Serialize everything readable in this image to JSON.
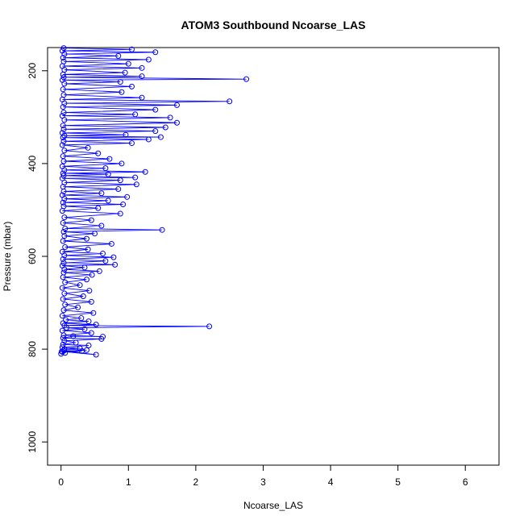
{
  "chart_data": {
    "type": "line",
    "title": "ATOM3 Southbound Ncoarse_LAS",
    "xlabel": "Ncoarse_LAS",
    "ylabel": "Pressure (mbar)",
    "xlim": [
      -0.2,
      6.5
    ],
    "ylim": [
      1050,
      150
    ],
    "y_reversed": true,
    "xticks": [
      0,
      1,
      2,
      3,
      4,
      5,
      6
    ],
    "yticks": [
      200,
      400,
      600,
      800,
      1000
    ],
    "grid": false,
    "legend": "none",
    "series_color": "#0000ff",
    "marker": "open-circle",
    "series": [
      {
        "points": [
          [
            0.0,
            810
          ],
          [
            0.06,
            808
          ],
          [
            0.02,
            806
          ],
          [
            0.31,
            804
          ],
          [
            0.04,
            803
          ],
          [
            0.52,
            812
          ],
          [
            0.01,
            805
          ],
          [
            0.38,
            802
          ],
          [
            0.05,
            800
          ],
          [
            0.28,
            798
          ],
          [
            0.02,
            796
          ],
          [
            0.41,
            792
          ],
          [
            0.03,
            790
          ],
          [
            0.22,
            786
          ],
          [
            0.05,
            782
          ],
          [
            0.6,
            778
          ],
          [
            0.03,
            776
          ],
          [
            0.18,
            772
          ],
          [
            0.62,
            773
          ],
          [
            0.04,
            770
          ],
          [
            0.45,
            765
          ],
          [
            0.02,
            760
          ],
          [
            0.35,
            757
          ],
          [
            0.08,
            754
          ],
          [
            2.2,
            751
          ],
          [
            0.05,
            749
          ],
          [
            0.52,
            747
          ],
          [
            0.03,
            744
          ],
          [
            0.41,
            740
          ],
          [
            0.07,
            737
          ],
          [
            0.3,
            733
          ],
          [
            0.02,
            728
          ],
          [
            0.48,
            722
          ],
          [
            0.04,
            716
          ],
          [
            0.25,
            710
          ],
          [
            0.06,
            704
          ],
          [
            0.45,
            698
          ],
          [
            0.03,
            692
          ],
          [
            0.33,
            686
          ],
          [
            0.05,
            680
          ],
          [
            0.42,
            674
          ],
          [
            0.02,
            668
          ],
          [
            0.28,
            662
          ],
          [
            0.06,
            656
          ],
          [
            0.38,
            650
          ],
          [
            0.03,
            645
          ],
          [
            0.46,
            640
          ],
          [
            0.04,
            635
          ],
          [
            0.57,
            632
          ],
          [
            0.05,
            628
          ],
          [
            0.35,
            624
          ],
          [
            0.02,
            620
          ],
          [
            0.8,
            618
          ],
          [
            0.04,
            614
          ],
          [
            0.66,
            610
          ],
          [
            0.03,
            606
          ],
          [
            0.78,
            602
          ],
          [
            0.05,
            598
          ],
          [
            0.62,
            594
          ],
          [
            0.02,
            590
          ],
          [
            0.4,
            585
          ],
          [
            0.06,
            580
          ],
          [
            0.75,
            573
          ],
          [
            0.03,
            567
          ],
          [
            0.38,
            562
          ],
          [
            0.05,
            556
          ],
          [
            0.5,
            551
          ],
          [
            0.04,
            547
          ],
          [
            1.5,
            543
          ],
          [
            0.06,
            540
          ],
          [
            0.6,
            534
          ],
          [
            0.03,
            528
          ],
          [
            0.45,
            522
          ],
          [
            0.05,
            516
          ],
          [
            0.88,
            508
          ],
          [
            0.02,
            502
          ],
          [
            0.55,
            496
          ],
          [
            0.04,
            492
          ],
          [
            0.92,
            488
          ],
          [
            0.03,
            484
          ],
          [
            0.7,
            480
          ],
          [
            0.05,
            476
          ],
          [
            0.98,
            472
          ],
          [
            0.02,
            468
          ],
          [
            0.6,
            464
          ],
          [
            0.04,
            460
          ],
          [
            0.85,
            455
          ],
          [
            0.03,
            450
          ],
          [
            1.12,
            445
          ],
          [
            0.05,
            441
          ],
          [
            0.88,
            436
          ],
          [
            0.02,
            432
          ],
          [
            1.1,
            430
          ],
          [
            0.04,
            426
          ],
          [
            0.7,
            423
          ],
          [
            0.03,
            421
          ],
          [
            1.25,
            418
          ],
          [
            0.05,
            414
          ],
          [
            0.66,
            410
          ],
          [
            0.02,
            406
          ],
          [
            0.9,
            400
          ],
          [
            0.04,
            395
          ],
          [
            0.72,
            390
          ],
          [
            0.03,
            384
          ],
          [
            0.55,
            378
          ],
          [
            0.05,
            372
          ],
          [
            0.4,
            366
          ],
          [
            0.02,
            360
          ],
          [
            1.05,
            356
          ],
          [
            0.04,
            352
          ],
          [
            1.3,
            348
          ],
          [
            0.03,
            344
          ],
          [
            1.48,
            343
          ],
          [
            0.05,
            340
          ],
          [
            0.96,
            338
          ],
          [
            0.02,
            334
          ],
          [
            1.4,
            330
          ],
          [
            0.04,
            326
          ],
          [
            1.55,
            322
          ],
          [
            0.03,
            318
          ],
          [
            1.72,
            312
          ],
          [
            0.05,
            306
          ],
          [
            1.62,
            301
          ],
          [
            0.02,
            297
          ],
          [
            1.1,
            294
          ],
          [
            0.04,
            290
          ],
          [
            1.4,
            284
          ],
          [
            0.03,
            278
          ],
          [
            1.72,
            274
          ],
          [
            0.05,
            270
          ],
          [
            2.5,
            266
          ],
          [
            0.02,
            262
          ],
          [
            1.2,
            258
          ],
          [
            0.04,
            252
          ],
          [
            0.9,
            246
          ],
          [
            0.03,
            240
          ],
          [
            1.05,
            234
          ],
          [
            0.05,
            228
          ],
          [
            0.88,
            224
          ],
          [
            0.02,
            220
          ],
          [
            2.75,
            218
          ],
          [
            0.04,
            214
          ],
          [
            1.2,
            212
          ],
          [
            0.03,
            208
          ],
          [
            0.95,
            204
          ],
          [
            0.05,
            198
          ],
          [
            1.2,
            194
          ],
          [
            0.02,
            190
          ],
          [
            1.0,
            185
          ],
          [
            0.04,
            180
          ],
          [
            1.3,
            176
          ],
          [
            0.03,
            172
          ],
          [
            0.85,
            168
          ],
          [
            0.05,
            164
          ],
          [
            1.4,
            160
          ],
          [
            0.02,
            157
          ],
          [
            1.05,
            154
          ],
          [
            0.04,
            151
          ]
        ]
      }
    ]
  }
}
